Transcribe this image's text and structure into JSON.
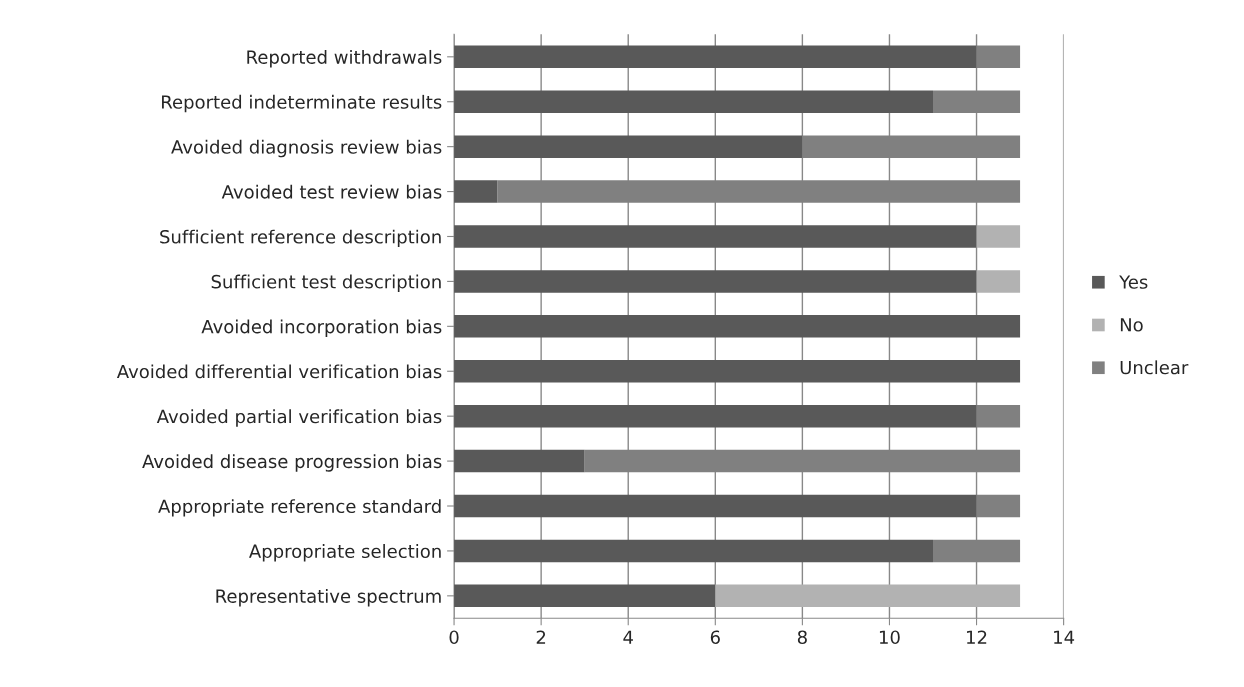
{
  "chart_data": {
    "type": "bar",
    "orientation": "horizontal",
    "stacked": true,
    "categories": [
      "Reported withdrawals",
      "Reported indeterminate results",
      "Avoided diagnosis review bias",
      "Avoided test review bias",
      "Sufficient reference description",
      "Sufficient test description",
      "Avoided incorporation bias",
      "Avoided differential verification bias",
      "Avoided partial verification bias",
      "Avoided disease progression bias",
      "Appropriate reference standard",
      "Appropriate selection",
      "Representative spectrum"
    ],
    "series": [
      {
        "name": "Yes",
        "color": "#595959",
        "values": [
          12,
          11,
          8,
          1,
          12,
          12,
          13,
          13,
          12,
          3,
          12,
          11,
          6
        ]
      },
      {
        "name": "No",
        "color": "#b2b2b2",
        "values": [
          0,
          0,
          0,
          0,
          1,
          1,
          0,
          0,
          0,
          0,
          0,
          0,
          7
        ]
      },
      {
        "name": "Unclear",
        "color": "#808080",
        "values": [
          1,
          2,
          5,
          12,
          0,
          0,
          0,
          0,
          1,
          10,
          1,
          2,
          0
        ]
      }
    ],
    "xlim": [
      0,
      14
    ],
    "xticks": [
      0,
      2,
      4,
      6,
      8,
      10,
      12,
      14
    ],
    "grid": "x",
    "legend": "right"
  }
}
